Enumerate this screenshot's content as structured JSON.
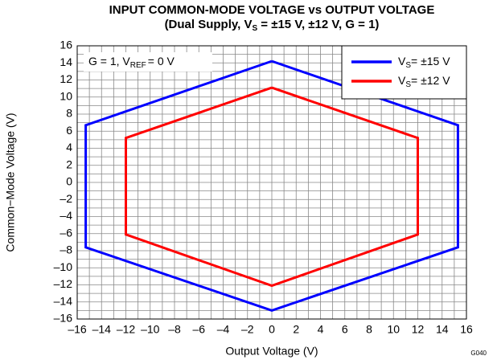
{
  "chart_data": {
    "type": "line",
    "title": "INPUT COMMON-MODE VOLTAGE vs OUTPUT VOLTAGE",
    "subtitle": [
      "(Dual Supply, V",
      "S",
      " = ±15 V, ±12 V, G = 1)"
    ],
    "annotation": [
      "G = 1, V",
      "REF",
      "= 0 V"
    ],
    "code": "G040",
    "xlabel": "Output Voltage (V)",
    "ylabel": "Common−Mode Voltage (V)",
    "xlim": [
      -16,
      16
    ],
    "ylim": [
      -16,
      16
    ],
    "xticks": [
      {
        "value": -16,
        "label": "–16"
      },
      {
        "value": -14,
        "label": "–14"
      },
      {
        "value": -12,
        "label": "–12"
      },
      {
        "value": -10,
        "label": "–10"
      },
      {
        "value": -8,
        "label": "–8"
      },
      {
        "value": -6,
        "label": "–6"
      },
      {
        "value": -4,
        "label": "–4"
      },
      {
        "value": -2,
        "label": "–2"
      },
      0,
      2,
      4,
      6,
      8,
      10,
      12,
      14,
      16
    ],
    "yticks": [
      {
        "value": -16,
        "label": "–16"
      },
      {
        "value": -14,
        "label": "–14"
      },
      {
        "value": -12,
        "label": "–12"
      },
      {
        "value": -10,
        "label": "–10"
      },
      {
        "value": -8,
        "label": "–8"
      },
      {
        "value": -6,
        "label": "–6"
      },
      {
        "value": -4,
        "label": "–4"
      },
      {
        "value": -2,
        "label": "–2"
      },
      0,
      2,
      4,
      6,
      8,
      10,
      12,
      14,
      16
    ],
    "grid": true,
    "legend": "upper right",
    "series": [
      {
        "name": [
          "V",
          "S",
          "= ±15 V"
        ],
        "color": "#0000ff",
        "x": [
          0,
          15.3,
          15.3,
          0,
          -15.3,
          -15.3,
          0
        ],
        "values": [
          14.2,
          6.7,
          -7.6,
          -15,
          -7.6,
          6.7,
          14.2
        ]
      },
      {
        "name": [
          "V",
          "S",
          "= ±12 V"
        ],
        "color": "#ff0000",
        "x": [
          0,
          12,
          12,
          0,
          -12,
          -12,
          0
        ],
        "values": [
          11.1,
          5.2,
          -6.1,
          -12.1,
          -6.1,
          5.2,
          11.1
        ]
      }
    ]
  }
}
